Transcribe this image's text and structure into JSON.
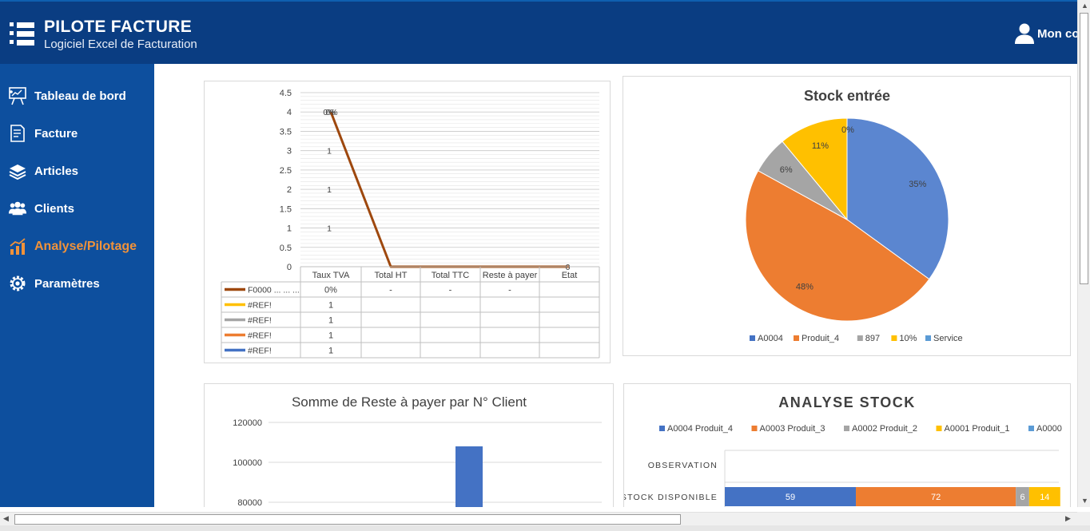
{
  "header": {
    "title": "PILOTE FACTURE",
    "subtitle": "Logiciel Excel de Facturation",
    "user_label": "Mon co"
  },
  "sidebar": {
    "items": [
      {
        "label": "Tableau de bord",
        "icon": "presentation-board-icon",
        "active": false
      },
      {
        "label": "Facture",
        "icon": "invoice-icon",
        "active": false
      },
      {
        "label": "Articles",
        "icon": "boxes-icon",
        "active": false
      },
      {
        "label": "Clients",
        "icon": "users-icon",
        "active": false
      },
      {
        "label": "Analyse/Pilotage",
        "icon": "analytics-icon",
        "active": true
      },
      {
        "label": "Paramètres",
        "icon": "gear-icon",
        "active": false
      }
    ]
  },
  "colors": {
    "header_bg": "#0a3d82",
    "sidebar_bg": "#0d4f9e",
    "active_nav": "#f0923a",
    "blue": "#4472c4",
    "orange": "#ed7d31",
    "gray": "#a5a5a5",
    "yellow": "#ffc000",
    "line_brown": "#9e480e"
  },
  "chart_data": [
    {
      "type": "line",
      "categories": [
        "Taux TVA",
        "Total HT",
        "Total TTC",
        "Reste à payer",
        "Etat"
      ],
      "yticks": [
        "0",
        "0.5",
        "1",
        "1.5",
        "2",
        "2.5",
        "3",
        "3.5",
        "4",
        "4.5"
      ],
      "ylim": [
        0,
        4.5
      ],
      "series": [
        {
          "name": "F0000 ... ... ...",
          "values": [
            4,
            0,
            0,
            0,
            0
          ],
          "color": "#9e480e",
          "table": [
            "0%",
            "-",
            "-",
            "-",
            ""
          ]
        },
        {
          "name": "#REF!",
          "values": [
            1,
            null,
            null,
            null,
            null
          ],
          "color": "#ffc000",
          "table": [
            "1",
            "",
            "",
            "",
            ""
          ]
        },
        {
          "name": "#REF!",
          "values": [
            1,
            null,
            null,
            null,
            null
          ],
          "color": "#a5a5a5",
          "table": [
            "1",
            "",
            "",
            "",
            ""
          ]
        },
        {
          "name": "#REF!",
          "values": [
            1,
            null,
            null,
            null,
            null
          ],
          "color": "#ed7d31",
          "table": [
            "1",
            "",
            "",
            "",
            ""
          ]
        },
        {
          "name": "#REF!",
          "values": [
            1,
            null,
            null,
            null,
            null
          ],
          "color": "#4472c4",
          "table": [
            "1",
            "",
            "",
            "",
            ""
          ]
        }
      ],
      "point_labels": [
        {
          "text": "0%",
          "x": "Taux TVA",
          "y": 4
        },
        {
          "text": "0%",
          "x": "Taux TVA",
          "y": 4
        },
        {
          "text": "1",
          "x": "Taux TVA",
          "y": 3
        },
        {
          "text": "1",
          "x": "Taux TVA",
          "y": 2
        },
        {
          "text": "1",
          "x": "Taux TVA",
          "y": 1
        },
        {
          "text": "0",
          "x": "Etat",
          "y": 0
        }
      ],
      "grid": true
    },
    {
      "type": "pie",
      "title": "Stock entrée",
      "slices": [
        {
          "label": "Service",
          "value": 35,
          "text": "35%",
          "color": "#5b86d0"
        },
        {
          "label": "A0004",
          "value": 0,
          "text": "",
          "color": "#4472c4"
        },
        {
          "label": "Produit_4",
          "value": 48,
          "text": "48%",
          "color": "#ed7d31"
        },
        {
          "label": "897",
          "value": 6,
          "text": "6%",
          "color": "#a5a5a5"
        },
        {
          "label": "10%",
          "value": 11,
          "text": "11%",
          "color": "#ffc000"
        },
        {
          "label": "",
          "value": 0,
          "text": "0%",
          "color": "#5b9bd5"
        }
      ],
      "legend": [
        {
          "label": "A0004",
          "color": "#4472c4"
        },
        {
          "label": "Produit_4",
          "color": "#ed7d31"
        },
        {
          "label": "897",
          "color": "#a5a5a5"
        },
        {
          "label": "10%",
          "color": "#ffc000"
        },
        {
          "label": "Service",
          "color": "#5b9bd5"
        }
      ],
      "legend_position": "bottom"
    },
    {
      "type": "bar",
      "title": "Somme de Reste à payer par  N° Client",
      "yticks": [
        "80000",
        "100000",
        "120000"
      ],
      "ylim": [
        80000,
        120000
      ],
      "bars": [
        {
          "category": "",
          "value": 108000,
          "color": "#4472c4"
        }
      ],
      "grid": true
    },
    {
      "type": "bar",
      "orientation": "horizontal-stacked",
      "title": "ANALYSE STOCK",
      "legend": [
        {
          "label": "A0004 Produit_4",
          "color": "#4472c4"
        },
        {
          "label": "A0003 Produit_3",
          "color": "#ed7d31"
        },
        {
          "label": "A0002 Produit_2",
          "color": "#a5a5a5"
        },
        {
          "label": "A0001 Produit_1",
          "color": "#ffc000"
        },
        {
          "label": "A0000",
          "color": "#5b9bd5"
        }
      ],
      "categories": [
        "OBSERVATION",
        "STOCK DISPONIBLE"
      ],
      "rows": [
        {
          "category": "OBSERVATION",
          "segments": []
        },
        {
          "category": "STOCK DISPONIBLE",
          "segments": [
            {
              "value": 59,
              "label": "59",
              "color": "#4472c4"
            },
            {
              "value": 72,
              "label": "72",
              "color": "#ed7d31"
            },
            {
              "value": 6,
              "label": "6",
              "color": "#a5a5a5"
            },
            {
              "value": 14,
              "label": "14",
              "color": "#ffc000"
            }
          ]
        }
      ],
      "legend_position": "top"
    }
  ]
}
